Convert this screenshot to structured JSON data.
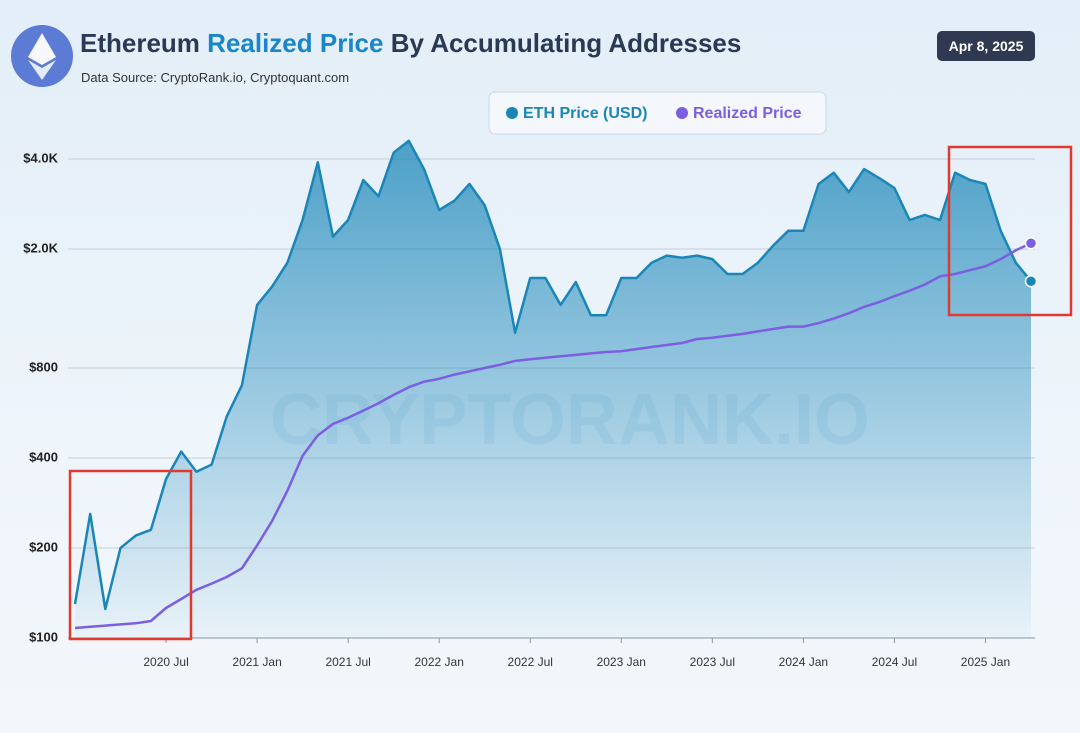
{
  "header": {
    "title_start": "Ethereum",
    "title_highlight": "Realized Price",
    "title_end": "By Accumulating Addresses",
    "source": "Data Source: CryptoRank.io, Cryptoquant.com",
    "date": "Apr 8, 2025"
  },
  "chart_data": {
    "type": "line",
    "watermark": "CRYPTORANK.IO",
    "log_scale": true,
    "grid": true,
    "x": [
      "2020-01",
      "2020-02",
      "2020-03",
      "2020-04",
      "2020-05",
      "2020-06",
      "2020-07",
      "2020-08",
      "2020-09",
      "2020-10",
      "2020-11",
      "2020-12",
      "2021-01",
      "2021-02",
      "2021-03",
      "2021-04",
      "2021-05",
      "2021-06",
      "2021-07",
      "2021-08",
      "2021-09",
      "2021-10",
      "2021-11",
      "2021-12",
      "2022-01",
      "2022-02",
      "2022-03",
      "2022-04",
      "2022-05",
      "2022-06",
      "2022-07",
      "2022-08",
      "2022-09",
      "2022-10",
      "2022-11",
      "2022-12",
      "2023-01",
      "2023-02",
      "2023-03",
      "2023-04",
      "2023-05",
      "2023-06",
      "2023-07",
      "2023-08",
      "2023-09",
      "2023-10",
      "2023-11",
      "2023-12",
      "2024-01",
      "2024-02",
      "2024-03",
      "2024-04",
      "2024-05",
      "2024-06",
      "2024-07",
      "2024-08",
      "2024-09",
      "2024-10",
      "2024-11",
      "2024-12",
      "2025-01",
      "2025-02",
      "2025-03",
      "2025-04"
    ],
    "series": [
      {
        "name": "ETH Price (USD)",
        "color": "#1a86b8",
        "fill": true,
        "values": [
          130,
          260,
          125,
          200,
          220,
          230,
          340,
          420,
          360,
          380,
          550,
          700,
          1300,
          1500,
          1800,
          2500,
          3900,
          2200,
          2500,
          3400,
          3000,
          4200,
          4600,
          3700,
          2700,
          2900,
          3300,
          2800,
          2000,
          1050,
          1600,
          1600,
          1300,
          1550,
          1200,
          1200,
          1600,
          1600,
          1800,
          1900,
          1870,
          1900,
          1850,
          1650,
          1650,
          1800,
          2050,
          2300,
          2300,
          3300,
          3600,
          3100,
          3700,
          3450,
          3200,
          2500,
          2600,
          2500,
          3600,
          3400,
          3300,
          2300,
          1800,
          1560
        ]
      },
      {
        "name": "Realized Price",
        "color": "#7b5fe0",
        "fill": false,
        "values": [
          108,
          109,
          110,
          111,
          112,
          114,
          126,
          135,
          145,
          152,
          160,
          171,
          204,
          247,
          311,
          407,
          476,
          520,
          545,
          576,
          610,
          650,
          690,
          720,
          736,
          760,
          780,
          800,
          820,
          845,
          855,
          865,
          875,
          885,
          895,
          905,
          910,
          925,
          940,
          955,
          970,
          1000,
          1010,
          1025,
          1040,
          1060,
          1080,
          1100,
          1100,
          1130,
          1170,
          1220,
          1280,
          1330,
          1390,
          1450,
          1520,
          1620,
          1650,
          1700,
          1750,
          1850,
          1980,
          2090
        ]
      }
    ],
    "xlim": [
      "2020-01",
      "2025-04"
    ],
    "xticks": [
      {
        "value": "2020-07",
        "label": "2020 Jul"
      },
      {
        "value": "2021-01",
        "label": "2021 Jan"
      },
      {
        "value": "2021-07",
        "label": "2021 Jul"
      },
      {
        "value": "2022-01",
        "label": "2022 Jan"
      },
      {
        "value": "2022-07",
        "label": "2022 Jul"
      },
      {
        "value": "2023-01",
        "label": "2023 Jan"
      },
      {
        "value": "2023-07",
        "label": "2023 Jul"
      },
      {
        "value": "2024-01",
        "label": "2024 Jan"
      },
      {
        "value": "2024-07",
        "label": "2024 Jul"
      },
      {
        "value": "2025-01",
        "label": "2025 Jan"
      }
    ],
    "ylim": [
      100,
      5000
    ],
    "yticks": [
      {
        "value": 100,
        "label": "$100"
      },
      {
        "value": 200,
        "label": "$200"
      },
      {
        "value": 400,
        "label": "$400"
      },
      {
        "value": 800,
        "label": "$800"
      },
      {
        "value": 2000,
        "label": "$2.0K"
      },
      {
        "value": 4000,
        "label": "$4.0K"
      }
    ]
  }
}
